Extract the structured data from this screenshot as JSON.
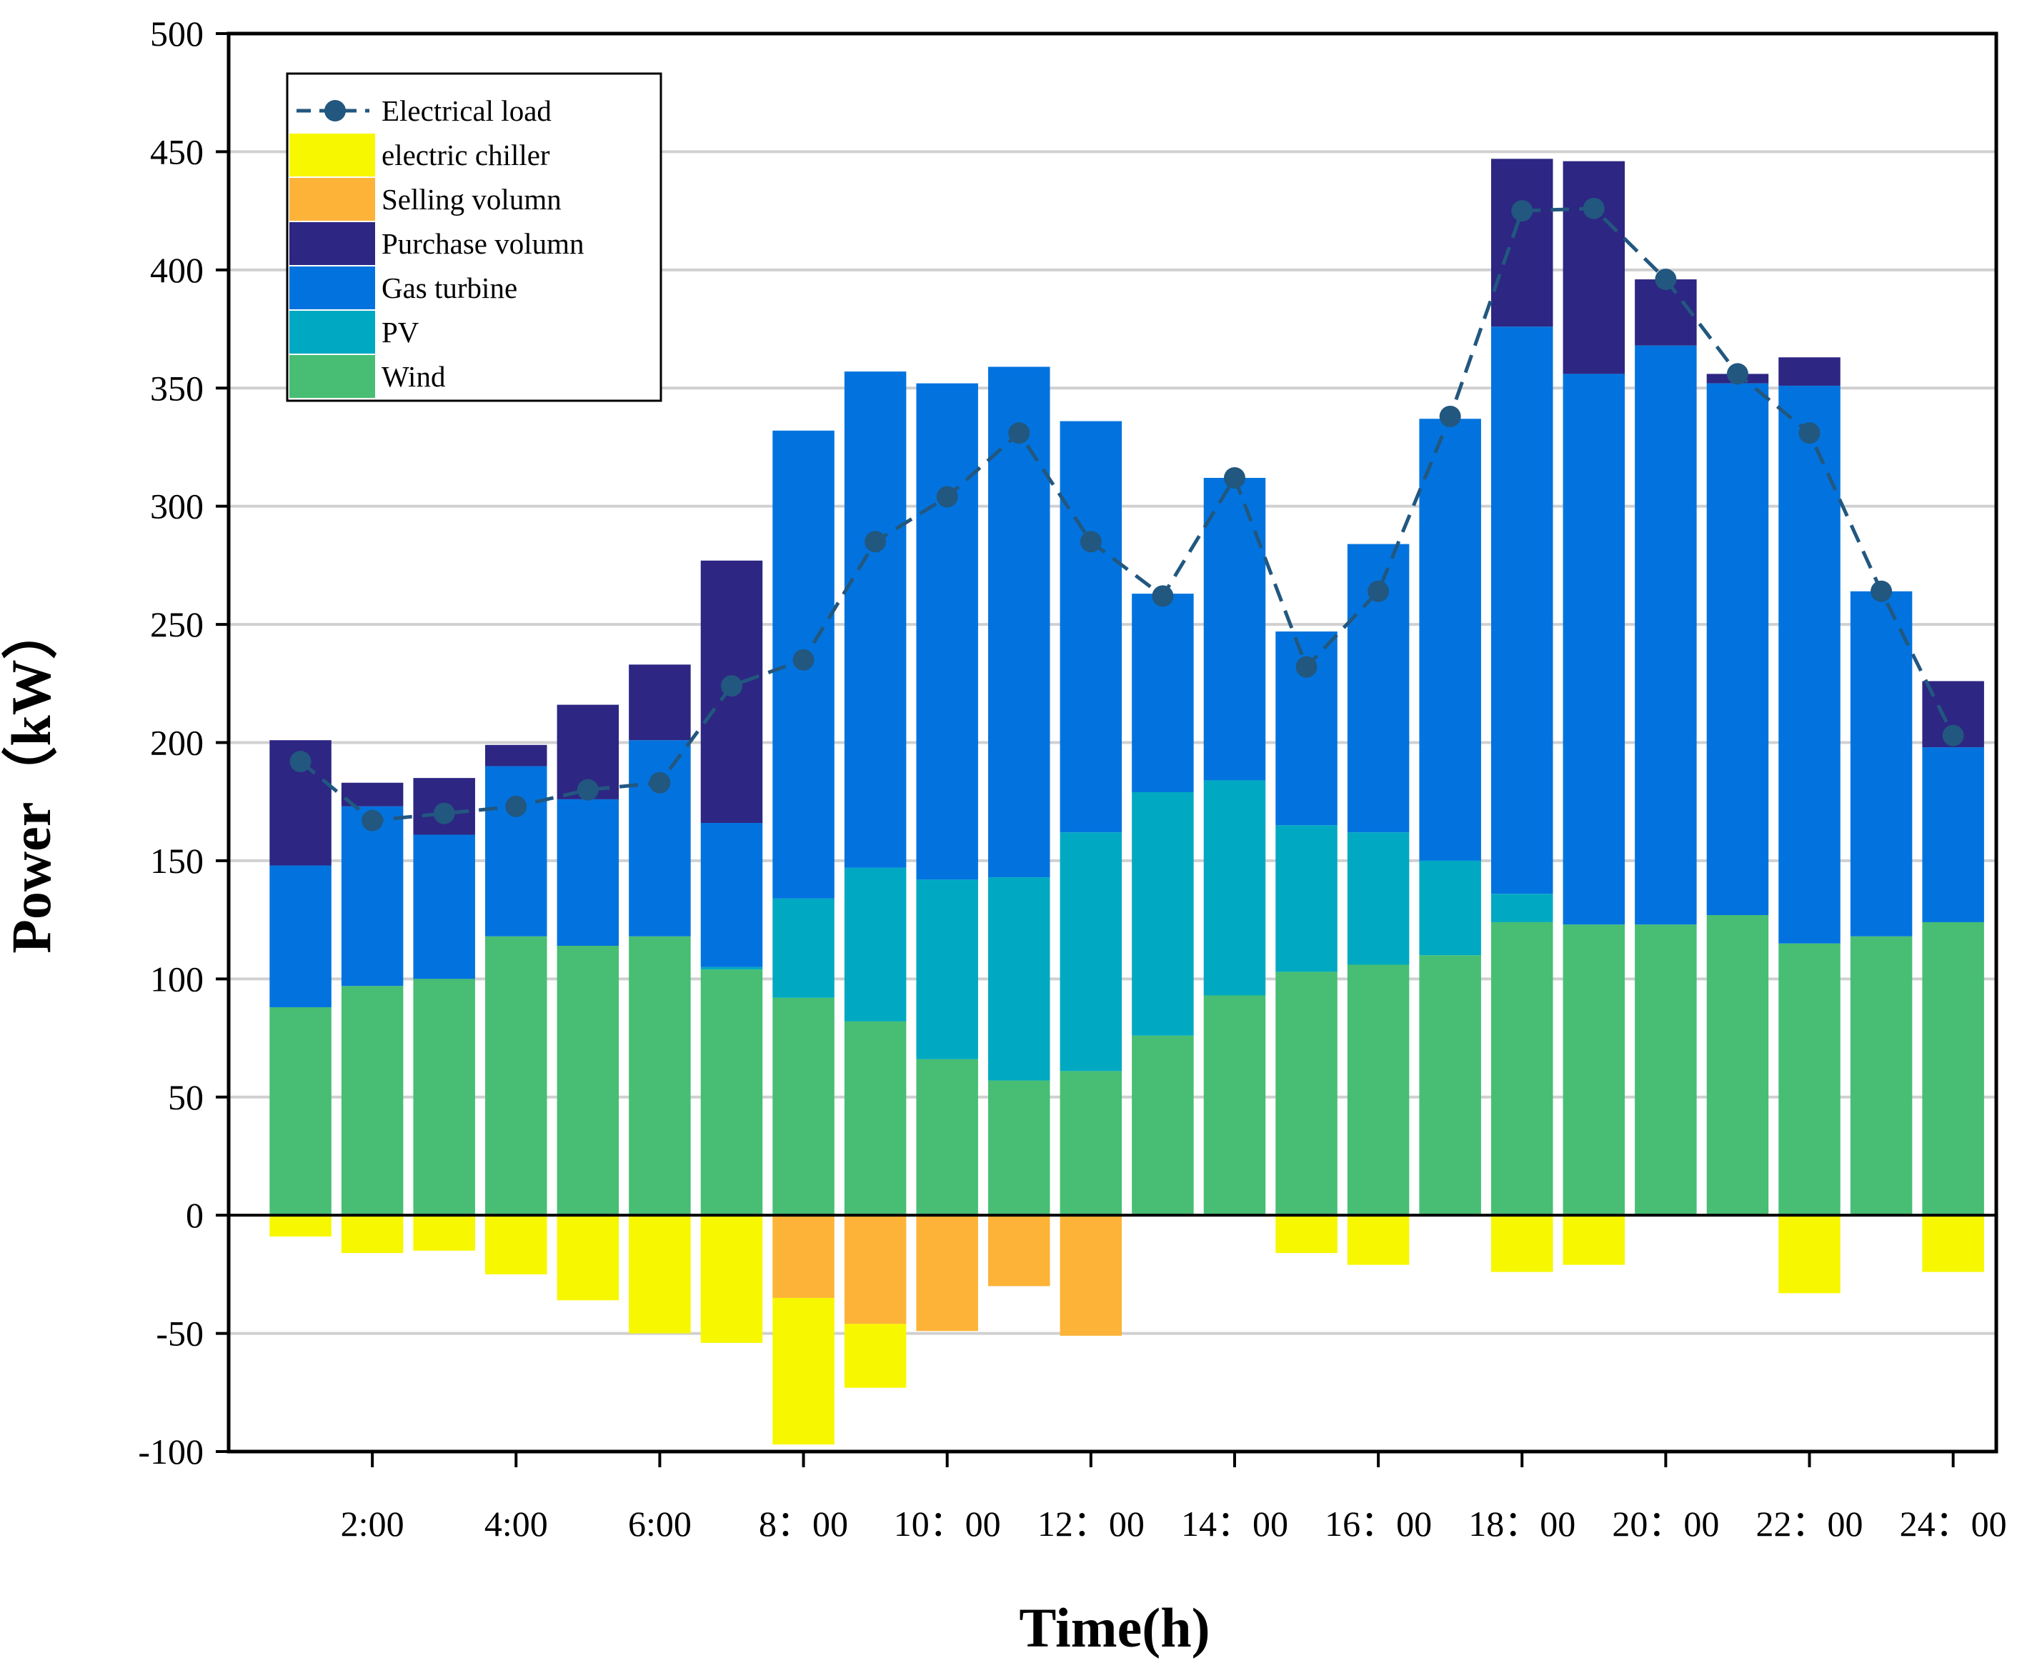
{
  "chart_data": {
    "type": "bar",
    "stacked": true,
    "title": "",
    "xlabel": "Time(h)",
    "ylabel": "Power（kW）",
    "ylim": [
      -100,
      500
    ],
    "yticks": [
      -100,
      -50,
      0,
      50,
      100,
      150,
      200,
      250,
      300,
      350,
      400,
      450,
      500
    ],
    "ytick_labels": [
      "-100",
      "-50",
      "0",
      "50",
      "100",
      "150",
      "200",
      "250",
      "300",
      "350",
      "400",
      "450",
      "500"
    ],
    "x": [
      1,
      2,
      3,
      4,
      5,
      6,
      7,
      8,
      9,
      10,
      11,
      12,
      13,
      14,
      15,
      16,
      17,
      18,
      19,
      20,
      21,
      22,
      23,
      24
    ],
    "xtick_positions": [
      2,
      4,
      6,
      8,
      10,
      12,
      14,
      16,
      18,
      20,
      22,
      24
    ],
    "xtick_labels": [
      "2:00",
      "4:00",
      "6:00",
      "8：00",
      "10：00",
      "12：00",
      "14：00",
      "16：00",
      "18：00",
      "20：00",
      "22：00",
      "24：00"
    ],
    "grid": true,
    "legend_position": "top-left",
    "positive_series": [
      {
        "name": "Wind",
        "color": "#47BE73",
        "values": [
          88,
          97,
          100,
          118,
          114,
          118,
          104,
          92,
          82,
          66,
          57,
          61,
          76,
          93,
          103,
          106,
          110,
          124,
          123,
          123,
          127,
          115,
          118,
          124
        ]
      },
      {
        "name": "PV",
        "color": "#00A9C1",
        "values": [
          0,
          0,
          0,
          0,
          0,
          0,
          1,
          42,
          65,
          76,
          86,
          101,
          103,
          91,
          62,
          56,
          40,
          12,
          0,
          0,
          0,
          0,
          0,
          0
        ]
      },
      {
        "name": "Gas turbine",
        "color": "#0273DE",
        "values": [
          60,
          76,
          61,
          72,
          62,
          83,
          61,
          198,
          210,
          210,
          216,
          174,
          84,
          128,
          82,
          122,
          187,
          240,
          233,
          245,
          225,
          236,
          146,
          74
        ]
      },
      {
        "name": "Purchase volumn",
        "color": "#2D2683",
        "values": [
          53,
          10,
          24,
          9,
          40,
          32,
          111,
          0,
          0,
          0,
          0,
          0,
          0,
          0,
          0,
          0,
          0,
          71,
          90,
          28,
          4,
          12,
          0,
          28
        ]
      }
    ],
    "negative_series": [
      {
        "name": "Selling volumn",
        "color": "#FDB338",
        "values": [
          0,
          0,
          0,
          0,
          0,
          0,
          0,
          -35,
          -46,
          -49,
          -30,
          -51,
          0,
          0,
          0,
          0,
          0,
          0,
          0,
          0,
          0,
          0,
          0,
          0
        ]
      },
      {
        "name": "electric chiller",
        "color": "#F7F700",
        "values": [
          -9,
          -16,
          -15,
          -25,
          -36,
          -50,
          -54,
          -62,
          -27,
          0,
          0,
          0,
          0,
          0,
          -16,
          -21,
          0,
          -24,
          -21,
          0,
          0,
          -33,
          0,
          -24
        ]
      }
    ],
    "line_series": {
      "name": "Electrical load",
      "color": "#22577F",
      "values": [
        192,
        167,
        170,
        173,
        180,
        183,
        224,
        235,
        285,
        304,
        331,
        285,
        262,
        312,
        232,
        264,
        338,
        425,
        426,
        396,
        356,
        331,
        264,
        203
      ]
    },
    "legend": [
      {
        "name": "Electrical load",
        "kind": "line",
        "color": "#22577F"
      },
      {
        "name": "electric chiller",
        "kind": "box",
        "color": "#F7F700"
      },
      {
        "name": "Selling volumn",
        "kind": "box",
        "color": "#FDB338"
      },
      {
        "name": "Purchase volumn",
        "kind": "box",
        "color": "#2D2683"
      },
      {
        "name": "Gas turbine",
        "kind": "box",
        "color": "#0273DE"
      },
      {
        "name": "PV",
        "kind": "box",
        "color": "#00A9C1"
      },
      {
        "name": "Wind",
        "kind": "box",
        "color": "#47BE73"
      }
    ]
  }
}
